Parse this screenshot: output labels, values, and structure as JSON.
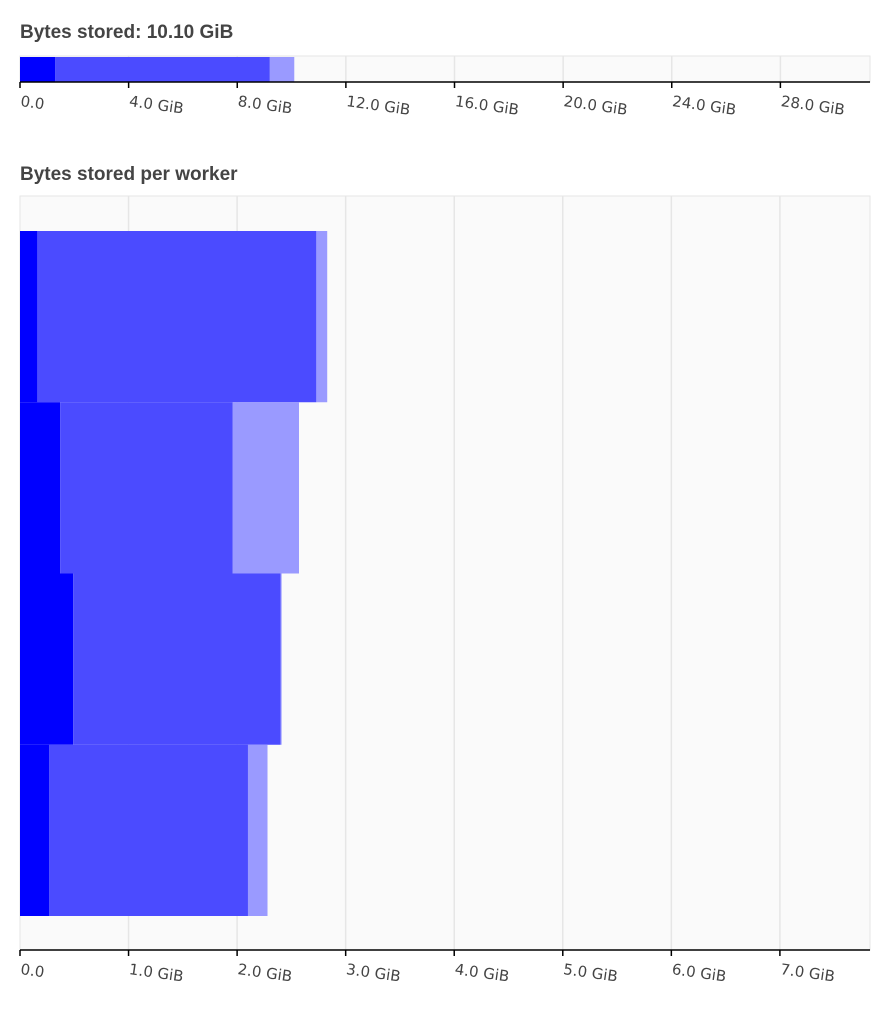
{
  "colors": {
    "dark": "#0000ff",
    "medium": "#4b4bff",
    "light": "#9a9aff",
    "plot_background": "#fafafa",
    "grid": "#e6e6e6",
    "axis": "#000000"
  },
  "chart_data": [
    {
      "type": "bar",
      "orientation": "horizontal",
      "stacked": true,
      "title": "Bytes stored: 10.10 GiB",
      "unit": "GiB",
      "xlim": [
        0,
        31.3
      ],
      "ticks": [
        0,
        4,
        8,
        12,
        16,
        20,
        24,
        28
      ],
      "tick_labels": [
        "0.0",
        "4.0 GiB",
        "8.0 GiB",
        "12.0 GiB",
        "16.0 GiB",
        "20.0 GiB",
        "24.0 GiB",
        "28.0 GiB"
      ],
      "grid": true,
      "bars": [
        {
          "segments": [
            1.3,
            7.9,
            0.9
          ]
        }
      ]
    },
    {
      "type": "bar",
      "orientation": "horizontal",
      "stacked": true,
      "title": "Bytes stored per worker",
      "unit": "GiB",
      "xlim": [
        0,
        7.83
      ],
      "ticks": [
        0,
        1,
        2,
        3,
        4,
        5,
        6,
        7
      ],
      "tick_labels": [
        "0.0",
        "1.0 GiB",
        "2.0 GiB",
        "3.0 GiB",
        "4.0 GiB",
        "5.0 GiB",
        "6.0 GiB",
        "7.0 GiB"
      ],
      "grid": true,
      "bars": [
        {
          "segments": [
            0.16,
            2.57,
            0.1
          ]
        },
        {
          "segments": [
            0.37,
            1.59,
            0.61
          ]
        },
        {
          "segments": [
            0.49,
            1.91,
            0.01
          ]
        },
        {
          "segments": [
            0.27,
            1.83,
            0.18
          ]
        }
      ]
    }
  ]
}
